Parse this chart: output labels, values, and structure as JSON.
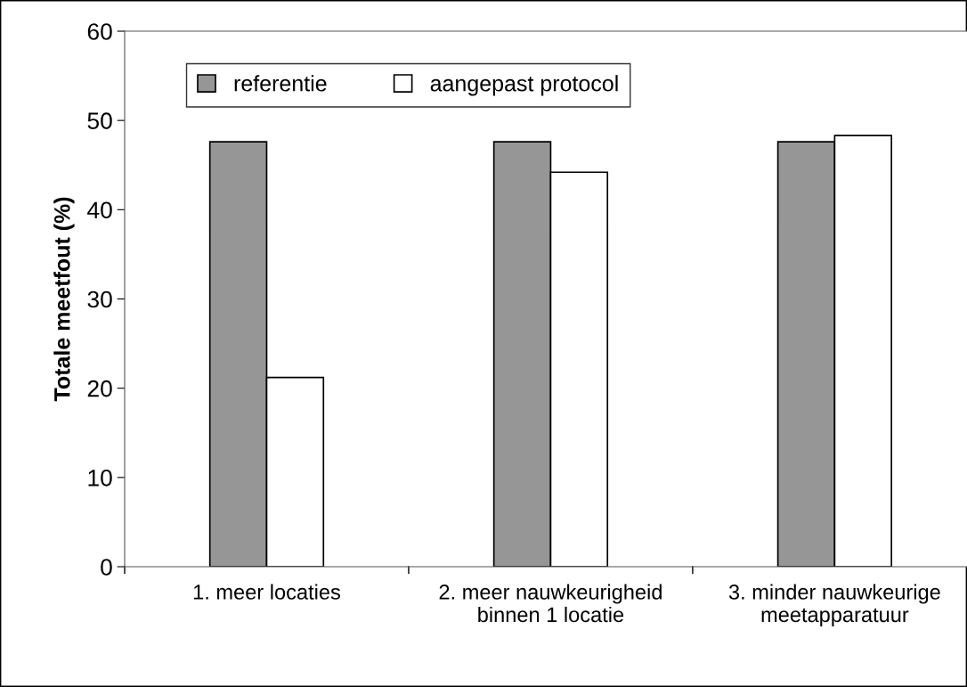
{
  "chart_data": {
    "type": "bar",
    "ylabel": "Totale meetfout (%)",
    "categories": [
      "1. meer locaties",
      "2. meer nauwkeurigheid\nbinnen 1 locatie",
      "3. minder nauwkeurige\nmeetapparatuur"
    ],
    "series": [
      {
        "name": "referentie",
        "color": "#969696",
        "values": [
          47.6,
          47.6,
          47.6
        ]
      },
      {
        "name": "aangepast protocol",
        "color": "#ffffff",
        "values": [
          21.2,
          44.2,
          48.3
        ]
      }
    ],
    "ylim": [
      0,
      60
    ],
    "yticks": [
      0,
      10,
      20,
      30,
      40,
      50,
      60
    ],
    "grid": false,
    "legend": "top"
  }
}
